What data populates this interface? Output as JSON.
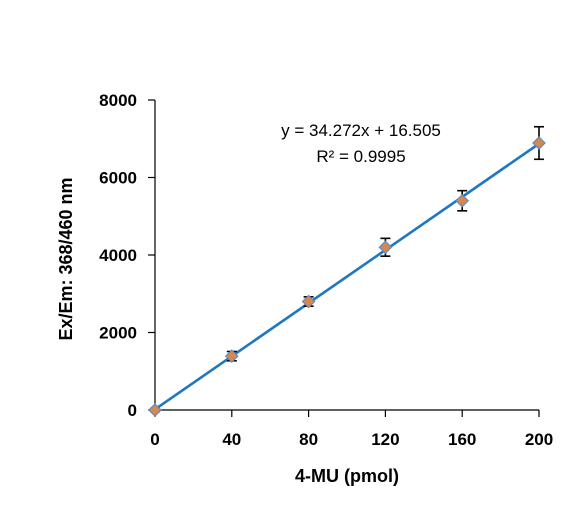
{
  "chart_data": {
    "type": "scatter",
    "xlabel": "4-MU (pmol)",
    "ylabel": "Ex/Em: 368/460 nm",
    "xlim": [
      0,
      200
    ],
    "ylim": [
      0,
      8000
    ],
    "x_ticks": [
      "0",
      "40",
      "80",
      "120",
      "160",
      "200"
    ],
    "y_ticks": [
      "0",
      "2000",
      "4000",
      "6000",
      "8000"
    ],
    "series": [
      {
        "x": [
          0,
          40,
          80,
          120,
          160,
          200
        ],
        "y": [
          0,
          1390,
          2800,
          4200,
          5400,
          6890
        ],
        "error": [
          40,
          120,
          120,
          230,
          260,
          420
        ],
        "marker_color": "#d9874a",
        "marker_edge_color": "#5b8ac9"
      }
    ],
    "trendline": {
      "slope": 34.272,
      "intercept": 16.505,
      "color": "#1f77c2",
      "equation": "y = 34.272x + 16.505",
      "r_squared": "R² = 0.9995"
    },
    "grid": false,
    "legend": "none"
  }
}
